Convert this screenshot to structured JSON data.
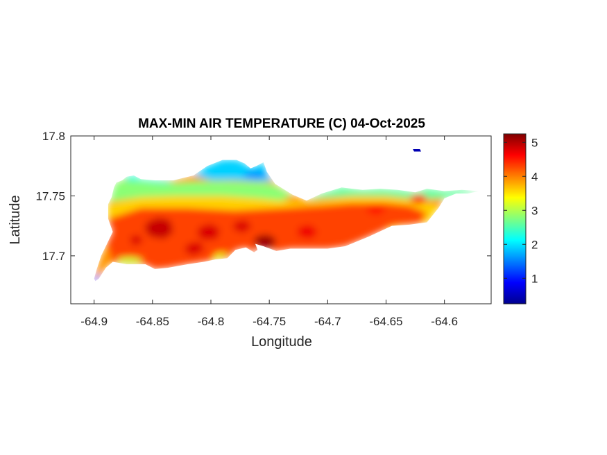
{
  "chart_data": {
    "type": "heatmap",
    "title": "MAX-MIN AIR TEMPERATURE (C) 04-Oct-2025",
    "xlabel": "Longitude",
    "ylabel": "Latitude",
    "xlim": [
      -64.92,
      -64.56
    ],
    "ylim": [
      17.66,
      17.8
    ],
    "x_ticks": [
      -64.9,
      -64.85,
      -64.8,
      -64.75,
      -64.7,
      -64.65,
      -64.6
    ],
    "x_tick_labels": [
      "-64.9",
      "-64.85",
      "-64.8",
      "-64.75",
      "-64.7",
      "-64.65",
      "-64.6"
    ],
    "y_ticks": [
      17.7,
      17.75,
      17.8
    ],
    "y_tick_labels": [
      "17.7",
      "17.75",
      "17.8"
    ],
    "grid": false,
    "colormap": "jet",
    "colorbar": {
      "location": "right",
      "clim": [
        0.25,
        5.25
      ],
      "ticks": [
        1,
        2,
        3,
        4,
        5
      ],
      "tick_labels": [
        "1",
        "2",
        "3",
        "4",
        "5"
      ]
    },
    "island_outline": [
      [
        -64.899,
        17.679
      ],
      [
        -64.896,
        17.681
      ],
      [
        -64.89,
        17.69
      ],
      [
        -64.884,
        17.695
      ],
      [
        -64.872,
        17.693
      ],
      [
        -64.856,
        17.693
      ],
      [
        -64.848,
        17.689
      ],
      [
        -64.837,
        17.69
      ],
      [
        -64.82,
        17.693
      ],
      [
        -64.806,
        17.695
      ],
      [
        -64.796,
        17.697
      ],
      [
        -64.786,
        17.698
      ],
      [
        -64.779,
        17.705
      ],
      [
        -64.77,
        17.707
      ],
      [
        -64.763,
        17.703
      ],
      [
        -64.76,
        17.705
      ],
      [
        -64.762,
        17.71
      ],
      [
        -64.755,
        17.708
      ],
      [
        -64.744,
        17.704
      ],
      [
        -64.732,
        17.706
      ],
      [
        -64.717,
        17.706
      ],
      [
        -64.7,
        17.706
      ],
      [
        -64.685,
        17.708
      ],
      [
        -64.665,
        17.716
      ],
      [
        -64.645,
        17.725
      ],
      [
        -64.63,
        17.726
      ],
      [
        -64.615,
        17.728
      ],
      [
        -64.605,
        17.74
      ],
      [
        -64.6,
        17.748
      ],
      [
        -64.59,
        17.752
      ],
      [
        -64.58,
        17.752
      ],
      [
        -64.57,
        17.754
      ],
      [
        -64.585,
        17.755
      ],
      [
        -64.6,
        17.754
      ],
      [
        -64.615,
        17.756
      ],
      [
        -64.625,
        17.753
      ],
      [
        -64.64,
        17.755
      ],
      [
        -64.655,
        17.756
      ],
      [
        -64.67,
        17.755
      ],
      [
        -64.688,
        17.757
      ],
      [
        -64.705,
        17.752
      ],
      [
        -64.718,
        17.746
      ],
      [
        -64.73,
        17.751
      ],
      [
        -64.745,
        17.76
      ],
      [
        -64.752,
        17.77
      ],
      [
        -64.755,
        17.778
      ],
      [
        -64.761,
        17.775
      ],
      [
        -64.766,
        17.773
      ],
      [
        -64.771,
        17.777
      ],
      [
        -64.778,
        17.78
      ],
      [
        -64.79,
        17.78
      ],
      [
        -64.803,
        17.775
      ],
      [
        -64.815,
        17.767
      ],
      [
        -64.832,
        17.763
      ],
      [
        -64.848,
        17.763
      ],
      [
        -64.86,
        17.764
      ],
      [
        -64.866,
        17.767
      ],
      [
        -64.872,
        17.766
      ],
      [
        -64.876,
        17.763
      ],
      [
        -64.881,
        17.761
      ],
      [
        -64.883,
        17.757
      ],
      [
        -64.885,
        17.749
      ],
      [
        -64.888,
        17.743
      ],
      [
        -64.888,
        17.731
      ],
      [
        -64.884,
        17.72
      ],
      [
        -64.889,
        17.71
      ],
      [
        -64.894,
        17.7
      ],
      [
        -64.898,
        17.688
      ],
      [
        -64.9,
        17.681
      ]
    ],
    "temperature_regions": [
      {
        "level": 1.2,
        "polygon": [
          [
            -64.901,
            17.678
          ],
          [
            -64.897,
            17.68
          ],
          [
            -64.894,
            17.686
          ],
          [
            -64.897,
            17.684
          ],
          [
            -64.902,
            17.679
          ]
        ]
      },
      {
        "level": 2.3,
        "polygon": [
          [
            -64.866,
            17.767
          ],
          [
            -64.86,
            17.764
          ],
          [
            -64.848,
            17.763
          ],
          [
            -64.835,
            17.762
          ],
          [
            -64.83,
            17.76
          ],
          [
            -64.845,
            17.757
          ],
          [
            -64.862,
            17.757
          ],
          [
            -64.876,
            17.759
          ],
          [
            -64.872,
            17.766
          ]
        ]
      },
      {
        "level": 1.9,
        "polygon": [
          [
            -64.815,
            17.767
          ],
          [
            -64.803,
            17.775
          ],
          [
            -64.79,
            17.78
          ],
          [
            -64.778,
            17.78
          ],
          [
            -64.771,
            17.777
          ],
          [
            -64.766,
            17.773
          ],
          [
            -64.761,
            17.775
          ],
          [
            -64.755,
            17.778
          ],
          [
            -64.752,
            17.77
          ],
          [
            -64.748,
            17.762
          ],
          [
            -64.76,
            17.762
          ],
          [
            -64.78,
            17.763
          ],
          [
            -64.8,
            17.763
          ]
        ]
      },
      {
        "level": 1.6,
        "polygon": [
          [
            -64.77,
            17.77
          ],
          [
            -64.76,
            17.771
          ],
          [
            -64.754,
            17.77
          ],
          [
            -64.752,
            17.766
          ],
          [
            -64.762,
            17.764
          ],
          [
            -64.772,
            17.766
          ]
        ]
      },
      {
        "level": 2.8,
        "polygon": [
          [
            -64.888,
            17.743
          ],
          [
            -64.885,
            17.749
          ],
          [
            -64.883,
            17.757
          ],
          [
            -64.881,
            17.761
          ],
          [
            -64.876,
            17.763
          ],
          [
            -64.86,
            17.762
          ],
          [
            -64.84,
            17.76
          ],
          [
            -64.815,
            17.762
          ],
          [
            -64.79,
            17.762
          ],
          [
            -64.76,
            17.761
          ],
          [
            -64.748,
            17.76
          ],
          [
            -64.738,
            17.755
          ],
          [
            -64.73,
            17.75
          ],
          [
            -64.74,
            17.746
          ],
          [
            -64.76,
            17.748
          ],
          [
            -64.79,
            17.75
          ],
          [
            -64.83,
            17.75
          ],
          [
            -64.86,
            17.749
          ],
          [
            -64.887,
            17.745
          ]
        ]
      },
      {
        "level": 2.6,
        "polygon": [
          [
            -64.718,
            17.746
          ],
          [
            -64.705,
            17.752
          ],
          [
            -64.688,
            17.757
          ],
          [
            -64.67,
            17.755
          ],
          [
            -64.655,
            17.756
          ],
          [
            -64.64,
            17.755
          ],
          [
            -64.625,
            17.753
          ],
          [
            -64.615,
            17.756
          ],
          [
            -64.6,
            17.754
          ],
          [
            -64.585,
            17.755
          ],
          [
            -64.57,
            17.754
          ],
          [
            -64.58,
            17.752
          ],
          [
            -64.6,
            17.748
          ],
          [
            -64.62,
            17.747
          ],
          [
            -64.65,
            17.75
          ],
          [
            -64.68,
            17.75
          ],
          [
            -64.705,
            17.748
          ]
        ]
      },
      {
        "level": 3.6,
        "polygon": [
          [
            -64.888,
            17.731
          ],
          [
            -64.888,
            17.743
          ],
          [
            -64.86,
            17.749
          ],
          [
            -64.83,
            17.75
          ],
          [
            -64.79,
            17.75
          ],
          [
            -64.76,
            17.748
          ],
          [
            -64.74,
            17.746
          ],
          [
            -64.718,
            17.744
          ],
          [
            -64.7,
            17.746
          ],
          [
            -64.68,
            17.749
          ],
          [
            -64.65,
            17.749
          ],
          [
            -64.625,
            17.746
          ],
          [
            -64.605,
            17.742
          ],
          [
            -64.612,
            17.73
          ],
          [
            -64.63,
            17.727
          ],
          [
            -64.66,
            17.72
          ],
          [
            -64.7,
            17.718
          ],
          [
            -64.76,
            17.725
          ],
          [
            -64.82,
            17.73
          ],
          [
            -64.86,
            17.732
          ]
        ]
      },
      {
        "level": 4.3,
        "polygon": [
          [
            -64.884,
            17.72
          ],
          [
            -64.888,
            17.731
          ],
          [
            -64.86,
            17.74
          ],
          [
            -64.82,
            17.74
          ],
          [
            -64.78,
            17.738
          ],
          [
            -64.74,
            17.74
          ],
          [
            -64.705,
            17.742
          ],
          [
            -64.68,
            17.744
          ],
          [
            -64.65,
            17.744
          ],
          [
            -64.63,
            17.742
          ],
          [
            -64.615,
            17.736
          ],
          [
            -64.62,
            17.728
          ],
          [
            -64.645,
            17.725
          ],
          [
            -64.665,
            17.716
          ],
          [
            -64.685,
            17.708
          ],
          [
            -64.7,
            17.706
          ],
          [
            -64.717,
            17.706
          ],
          [
            -64.732,
            17.706
          ],
          [
            -64.744,
            17.704
          ],
          [
            -64.755,
            17.708
          ],
          [
            -64.762,
            17.71
          ],
          [
            -64.76,
            17.705
          ],
          [
            -64.763,
            17.703
          ],
          [
            -64.77,
            17.707
          ],
          [
            -64.779,
            17.705
          ],
          [
            -64.786,
            17.698
          ],
          [
            -64.796,
            17.697
          ],
          [
            -64.806,
            17.695
          ],
          [
            -64.82,
            17.693
          ],
          [
            -64.837,
            17.69
          ],
          [
            -64.848,
            17.689
          ],
          [
            -64.856,
            17.693
          ],
          [
            -64.872,
            17.693
          ],
          [
            -64.884,
            17.695
          ],
          [
            -64.889,
            17.71
          ]
        ]
      },
      {
        "level": 3.1,
        "polygon": [
          [
            -64.878,
            17.694
          ],
          [
            -64.862,
            17.694
          ],
          [
            -64.858,
            17.697
          ],
          [
            -64.868,
            17.699
          ],
          [
            -64.88,
            17.698
          ]
        ]
      },
      {
        "level": 3.2,
        "polygon": [
          [
            -64.8,
            17.697
          ],
          [
            -64.79,
            17.699
          ],
          [
            -64.785,
            17.703
          ],
          [
            -64.795,
            17.702
          ]
        ]
      },
      {
        "level": 4.9,
        "polygon": [
          [
            -64.855,
            17.728
          ],
          [
            -64.845,
            17.732
          ],
          [
            -64.835,
            17.73
          ],
          [
            -64.832,
            17.72
          ],
          [
            -64.84,
            17.714
          ],
          [
            -64.852,
            17.716
          ],
          [
            -64.857,
            17.722
          ]
        ]
      },
      {
        "level": 4.8,
        "polygon": [
          [
            -64.87,
            17.715
          ],
          [
            -64.862,
            17.718
          ],
          [
            -64.858,
            17.712
          ],
          [
            -64.866,
            17.708
          ]
        ]
      },
      {
        "level": 4.8,
        "polygon": [
          [
            -64.81,
            17.724
          ],
          [
            -64.8,
            17.727
          ],
          [
            -64.792,
            17.722
          ],
          [
            -64.795,
            17.714
          ],
          [
            -64.806,
            17.713
          ],
          [
            -64.812,
            17.718
          ]
        ]
      },
      {
        "level": 4.8,
        "polygon": [
          [
            -64.82,
            17.71
          ],
          [
            -64.81,
            17.712
          ],
          [
            -64.805,
            17.705
          ],
          [
            -64.815,
            17.7
          ],
          [
            -64.823,
            17.704
          ]
        ]
      },
      {
        "level": 5.1,
        "polygon": [
          [
            -64.762,
            17.716
          ],
          [
            -64.752,
            17.718
          ],
          [
            -64.744,
            17.714
          ],
          [
            -64.747,
            17.707
          ],
          [
            -64.756,
            17.706
          ],
          [
            -64.763,
            17.71
          ]
        ]
      },
      {
        "level": 4.8,
        "polygon": [
          [
            -64.78,
            17.728
          ],
          [
            -64.77,
            17.73
          ],
          [
            -64.765,
            17.724
          ],
          [
            -64.772,
            17.719
          ],
          [
            -64.781,
            17.722
          ]
        ]
      },
      {
        "level": 4.7,
        "polygon": [
          [
            -64.725,
            17.724
          ],
          [
            -64.715,
            17.726
          ],
          [
            -64.708,
            17.72
          ],
          [
            -64.715,
            17.714
          ],
          [
            -64.726,
            17.717
          ]
        ]
      },
      {
        "level": 4.6,
        "polygon": [
          [
            -64.628,
            17.75
          ],
          [
            -64.618,
            17.751
          ],
          [
            -64.614,
            17.746
          ],
          [
            -64.622,
            17.743
          ],
          [
            -64.63,
            17.746
          ]
        ]
      },
      {
        "level": 4.5,
        "polygon": [
          [
            -64.665,
            17.742
          ],
          [
            -64.655,
            17.744
          ],
          [
            -64.65,
            17.738
          ],
          [
            -64.658,
            17.733
          ],
          [
            -64.667,
            17.737
          ]
        ]
      }
    ],
    "islets": [
      {
        "level": 0.5,
        "polygon": [
          [
            -64.627,
            17.789
          ],
          [
            -64.621,
            17.789
          ],
          [
            -64.62,
            17.787
          ],
          [
            -64.626,
            17.787
          ]
        ]
      }
    ]
  }
}
